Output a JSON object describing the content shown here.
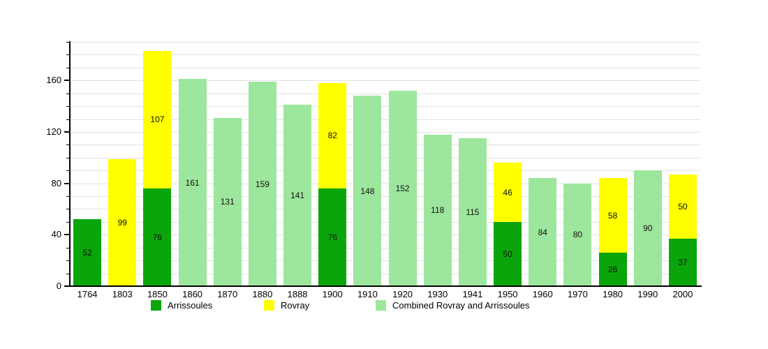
{
  "chart_data": {
    "type": "bar",
    "stacked": true,
    "categories": [
      "1764",
      "1803",
      "1850",
      "1860",
      "1870",
      "1880",
      "1888",
      "1900",
      "1910",
      "1920",
      "1930",
      "1941",
      "1950",
      "1960",
      "1970",
      "1980",
      "1990",
      "2000"
    ],
    "series": [
      {
        "name": "Arrissoules",
        "color": "#0aa50a",
        "values": [
          52,
          null,
          76,
          null,
          null,
          null,
          null,
          76,
          null,
          null,
          null,
          null,
          50,
          null,
          null,
          26,
          null,
          37
        ]
      },
      {
        "name": "Rovray",
        "color": "#ffff00",
        "values": [
          null,
          99,
          107,
          null,
          null,
          null,
          null,
          82,
          null,
          null,
          null,
          null,
          46,
          null,
          null,
          58,
          null,
          50
        ]
      },
      {
        "name": "Combined Rovray and Arrissoules",
        "color": "#9de69d",
        "values": [
          null,
          null,
          null,
          161,
          131,
          159,
          141,
          null,
          148,
          152,
          118,
          115,
          null,
          84,
          80,
          null,
          90,
          null
        ]
      }
    ],
    "ylim": [
      0,
      190
    ],
    "ytick_labels": [
      0,
      40,
      80,
      120,
      160
    ],
    "grid_step": 10,
    "grid": true,
    "legend_position": "bottom",
    "grid_color": "#e2e2e2",
    "axis_color": "#000000",
    "bar_label_color": "#101010"
  }
}
